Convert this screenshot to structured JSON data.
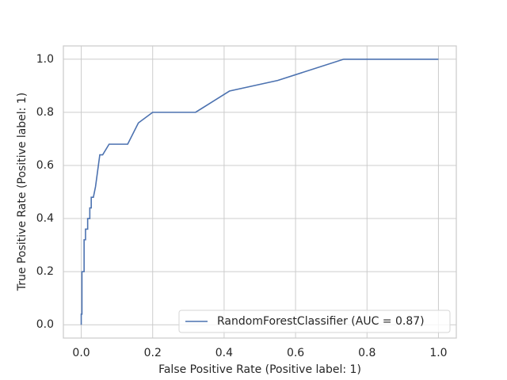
{
  "chart_data": {
    "type": "line",
    "x_label": "False Positive Rate (Positive label: 1)",
    "y_label": "True Positive Rate (Positive label: 1)",
    "series": [
      {
        "name": "RandomForestClassifier (AUC = 0.87)",
        "color": "#4c72b0",
        "x": [
          0,
          0,
          0.002,
          0.002,
          0.008,
          0.008,
          0.012,
          0.012,
          0.018,
          0.018,
          0.024,
          0.024,
          0.028,
          0.028,
          0.034,
          0.04,
          0.044,
          0.048,
          0.052,
          0.06,
          0.078,
          0.13,
          0.16,
          0.2,
          0.32,
          0.415,
          0.55,
          0.735,
          1.0
        ],
        "values": [
          0,
          0.04,
          0.04,
          0.2,
          0.2,
          0.32,
          0.32,
          0.36,
          0.36,
          0.4,
          0.4,
          0.44,
          0.44,
          0.48,
          0.48,
          0.52,
          0.56,
          0.6,
          0.64,
          0.64,
          0.68,
          0.68,
          0.76,
          0.8,
          0.8,
          0.88,
          0.92,
          1.0,
          1.0
        ]
      }
    ],
    "xlim": [
      -0.05,
      1.05
    ],
    "ylim": [
      -0.05,
      1.05
    ],
    "xticks": [
      {
        "value": 0,
        "label": "0.0"
      },
      0.2,
      0.4,
      0.6,
      0.8,
      {
        "value": 1,
        "label": "1.0"
      }
    ],
    "yticks": [
      {
        "value": 0,
        "label": "0.0"
      },
      0.2,
      0.4,
      0.6,
      0.8,
      {
        "value": 1,
        "label": "1.0"
      }
    ],
    "grid": true,
    "legend": "lower right"
  }
}
